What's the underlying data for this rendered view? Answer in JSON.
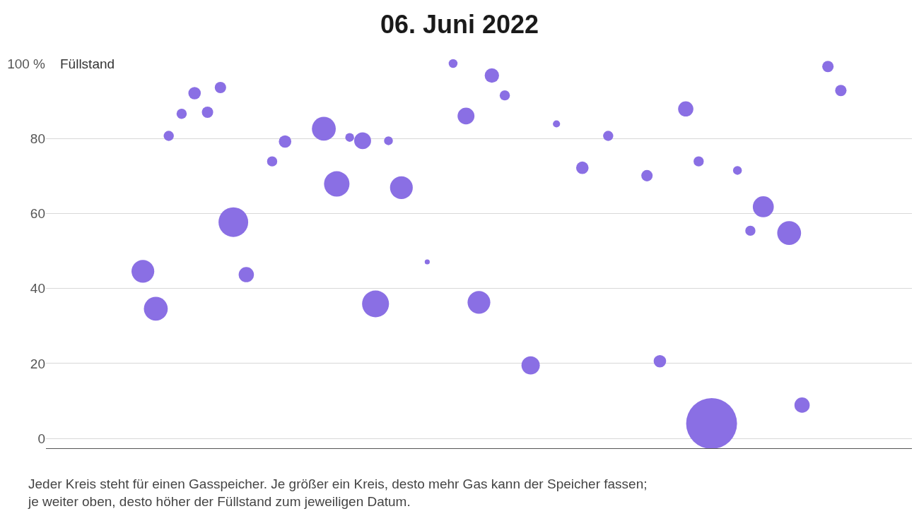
{
  "chart_data": {
    "type": "bubble",
    "title": "06. Juni 2022",
    "ylabel": "Füllstand",
    "categories": [
      null,
      null,
      null,
      null,
      null,
      null,
      null,
      null,
      null,
      null,
      null,
      null,
      null,
      null,
      null,
      null,
      null,
      null,
      null,
      null,
      null,
      null,
      null,
      null,
      null,
      null,
      null,
      null,
      null,
      null,
      null,
      null,
      null,
      null,
      null,
      null,
      null,
      null,
      null,
      null,
      null,
      null,
      null,
      null,
      null,
      null,
      null,
      null,
      null,
      null,
      null,
      null,
      null,
      null,
      null,
      null,
      null,
      null,
      null,
      null,
      null,
      null,
      null,
      null,
      null,
      null,
      null
    ],
    "values": [
      null,
      null,
      null,
      null,
      null,
      null,
      null,
      44.6,
      34.6,
      80.7,
      86.6,
      92.1,
      87.0,
      93.6,
      57.7,
      43.7,
      null,
      73.9,
      79.2,
      null,
      null,
      82.6,
      67.9,
      80.3,
      79.4,
      35.9,
      79.4,
      66.9,
      null,
      47.1,
      null,
      100,
      86.0,
      36.3,
      96.8,
      91.5,
      null,
      19.5,
      null,
      83.9,
      null,
      72.2,
      null,
      80.7,
      null,
      null,
      70.1,
      20.6,
      null,
      87.9,
      73.9,
      4.0,
      null,
      71.5,
      55.4,
      61.8,
      null,
      54.8,
      8.9,
      null,
      99.2,
      92.8,
      null,
      null,
      null,
      null,
      null
    ],
    "sizes": [
      null,
      null,
      null,
      null,
      null,
      null,
      null,
      0.2,
      0.22,
      0.04,
      0.04,
      0.06,
      0.05,
      0.05,
      0.34,
      0.09,
      null,
      0.04,
      0.06,
      null,
      null,
      0.22,
      0.25,
      0.03,
      0.11,
      0.28,
      0.03,
      0.2,
      null,
      0.01,
      null,
      0.03,
      0.11,
      0.2,
      0.08,
      0.04,
      null,
      0.13,
      null,
      0.02,
      null,
      0.06,
      null,
      0.04,
      null,
      null,
      0.05,
      0.06,
      null,
      0.09,
      0.04,
      1,
      null,
      0.03,
      0.04,
      0.17,
      null,
      0.22,
      0.09,
      null,
      0.05,
      0.05,
      null,
      null,
      null,
      null,
      null
    ],
    "color": "#8a6fe4",
    "ylim": [
      -2.6,
      100
    ],
    "yticks": [
      0,
      20,
      40,
      60,
      80,
      {
        "value": 100,
        "label": "100 %"
      }
    ],
    "grid": "y",
    "legend": false,
    "tick_labels": "y",
    "marker": "circle",
    "annotations": [
      "Jeder Kreis steht für einen Gasspeicher. Je größer ein Kreis, desto mehr Gas kann der Speicher fassen; je weiter oben, desto höher der Füllstand zum jeweiligen Datum."
    ]
  }
}
